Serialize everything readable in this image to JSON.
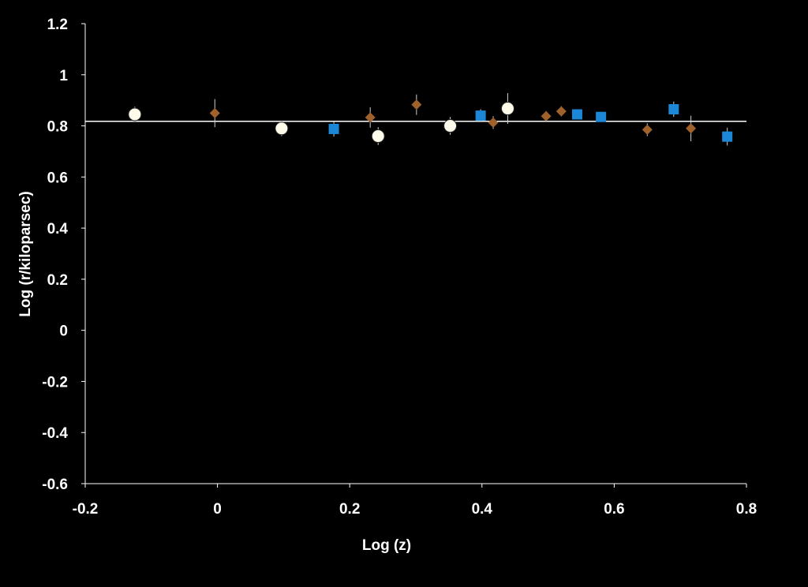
{
  "chart_data": {
    "type": "scatter",
    "title": "",
    "xlabel": "Log (z)",
    "ylabel": "Log (r/kiloparsec)",
    "xlim": [
      -0.2,
      0.8
    ],
    "ylim": [
      -0.6,
      1.2
    ],
    "xticks": [
      -0.2,
      0,
      0.2,
      0.4,
      0.6,
      0.8
    ],
    "xtick_labels": [
      "-0.2",
      "0",
      "0.2",
      "0.4",
      "0.6",
      "0.8"
    ],
    "yticks": [
      -0.6,
      -0.4,
      -0.2,
      0,
      0.2,
      0.4,
      0.6,
      0.8,
      1,
      1.2
    ],
    "ytick_labels": [
      "-0.6",
      "-0.4",
      "-0.2",
      "0",
      "0.2",
      "0.4",
      "0.6",
      "0.8",
      "1",
      "1.2"
    ],
    "grid": false,
    "background": "#000000",
    "axis_color": "#ffffff",
    "reference_line": {
      "y": 0.818,
      "x_range": [
        -0.2,
        0.8
      ],
      "color": "#ffffff"
    },
    "series": [
      {
        "marker": "circle",
        "color": "#fffbea",
        "points": [
          {
            "x": -0.125,
            "y": 0.845,
            "err": 0.03
          },
          {
            "x": 0.097,
            "y": 0.79,
            "err": 0.03
          },
          {
            "x": 0.243,
            "y": 0.76,
            "err": 0.035
          },
          {
            "x": 0.352,
            "y": 0.8,
            "err": 0.035
          },
          {
            "x": 0.439,
            "y": 0.868,
            "err": 0.06
          }
        ]
      },
      {
        "marker": "diamond",
        "color": "#a0622d",
        "points": [
          {
            "x": -0.004,
            "y": 0.85,
            "err": 0.055
          },
          {
            "x": 0.231,
            "y": 0.833,
            "err": 0.04
          },
          {
            "x": 0.301,
            "y": 0.883,
            "err": 0.04
          },
          {
            "x": 0.417,
            "y": 0.813,
            "err": 0.025
          },
          {
            "x": 0.497,
            "y": 0.838,
            "err": 0.02
          },
          {
            "x": 0.52,
            "y": 0.857,
            "err": 0.02
          },
          {
            "x": 0.65,
            "y": 0.785,
            "err": 0.025
          },
          {
            "x": 0.716,
            "y": 0.79,
            "err": 0.05
          }
        ]
      },
      {
        "marker": "square",
        "color": "#1b87d6",
        "points": [
          {
            "x": 0.176,
            "y": 0.788,
            "err": 0.03
          },
          {
            "x": 0.398,
            "y": 0.84,
            "err": 0.025
          },
          {
            "x": 0.544,
            "y": 0.845,
            "err": 0.02
          },
          {
            "x": 0.58,
            "y": 0.835,
            "err": 0.02
          },
          {
            "x": 0.69,
            "y": 0.865,
            "err": 0.03
          },
          {
            "x": 0.771,
            "y": 0.758,
            "err": 0.035
          }
        ]
      }
    ]
  }
}
